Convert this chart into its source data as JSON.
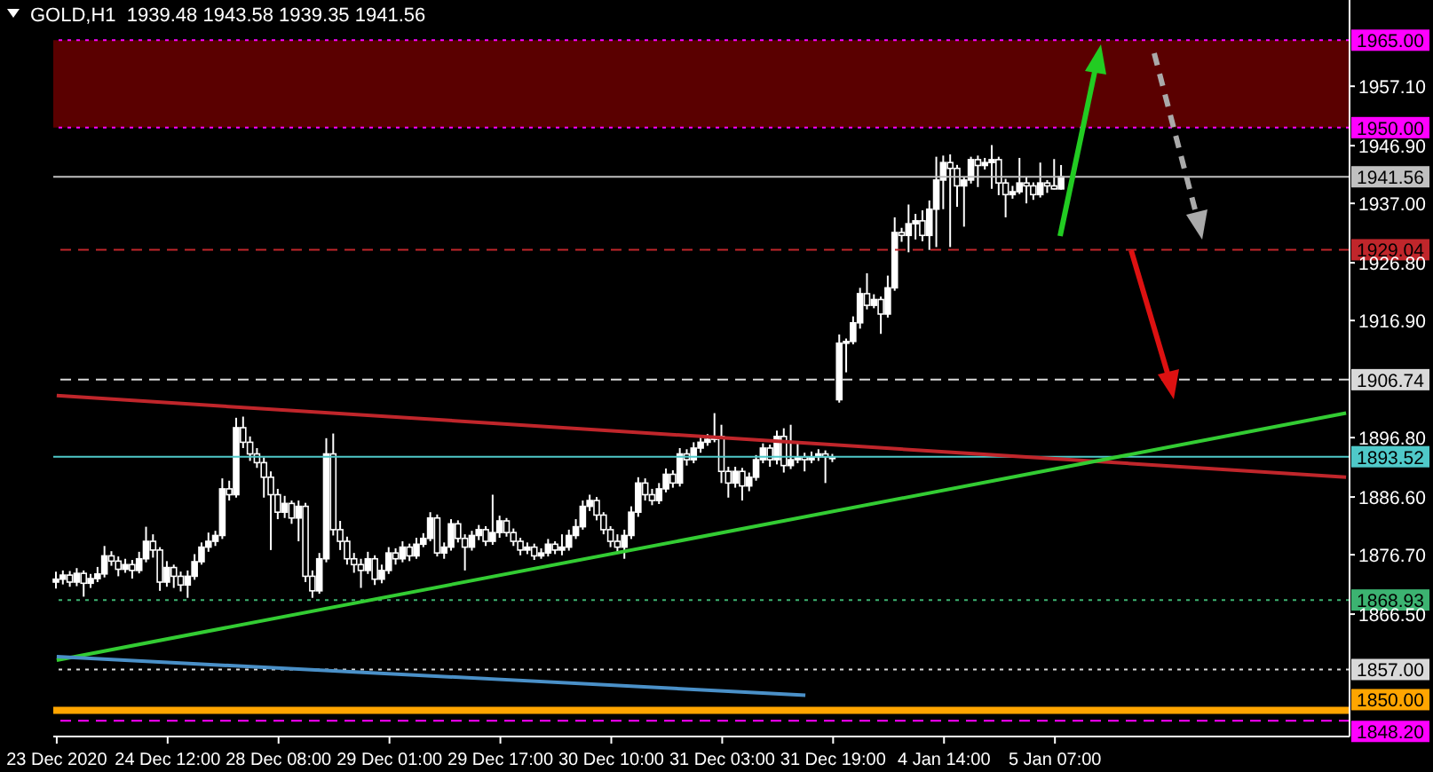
{
  "chart_data": {
    "type": "candlestick",
    "title": "GOLD,H1  1939.48 1943.58 1939.35 1941.56",
    "color": "#ffffff",
    "categories": [
      "23 Dec 2020",
      null,
      null,
      null,
      null,
      null,
      null,
      null,
      null,
      null,
      null,
      null,
      null,
      null,
      null,
      null,
      "24 Dec 12:00",
      null,
      null,
      null,
      null,
      null,
      null,
      null,
      null,
      null,
      null,
      null,
      null,
      null,
      null,
      null,
      "28 Dec 08:00",
      null,
      null,
      null,
      null,
      null,
      null,
      null,
      null,
      null,
      null,
      null,
      null,
      null,
      null,
      null,
      "29 Dec 01:00",
      null,
      null,
      null,
      null,
      null,
      null,
      null,
      null,
      null,
      null,
      null,
      null,
      null,
      null,
      null,
      "29 Dec 17:00",
      null,
      null,
      null,
      null,
      null,
      null,
      null,
      null,
      null,
      null,
      null,
      null,
      null,
      null,
      null,
      "30 Dec 10:00",
      null,
      null,
      null,
      null,
      null,
      null,
      null,
      null,
      null,
      null,
      null,
      null,
      null,
      null,
      null,
      "31 Dec 03:00",
      null,
      null,
      null,
      null,
      null,
      null,
      null,
      null,
      null,
      null,
      null,
      null,
      null,
      null,
      null,
      "31 Dec 19:00",
      null,
      null,
      null,
      null,
      null,
      null,
      null,
      null,
      null,
      null,
      null,
      null,
      null,
      null,
      null,
      "4 Jan 14:00",
      null,
      null,
      null,
      null,
      null,
      null,
      null,
      null,
      null,
      null,
      null,
      null,
      null,
      null,
      null,
      "5 Jan 07:00",
      null,
      null,
      null,
      null,
      null,
      null,
      null,
      null,
      null,
      null,
      null,
      null,
      null,
      null,
      null,
      null,
      null,
      null,
      null,
      null,
      null,
      null,
      null,
      null,
      null,
      null,
      null,
      null,
      null,
      null,
      null,
      null,
      null,
      null,
      null,
      null,
      null,
      null,
      null,
      null,
      null,
      null
    ],
    "ohlc": [
      [
        1872.0,
        1873.8,
        1870.9,
        1872.5
      ],
      [
        1872.5,
        1874.0,
        1871.6,
        1873.2
      ],
      [
        1873.2,
        1873.9,
        1871.2,
        1872.0
      ],
      [
        1872.0,
        1874.4,
        1871.3,
        1873.5
      ],
      [
        1873.5,
        1874.0,
        1869.5,
        1871.8
      ],
      [
        1871.8,
        1873.4,
        1871.0,
        1872.6
      ],
      [
        1872.6,
        1874.6,
        1872.0,
        1873.4
      ],
      [
        1873.4,
        1878.2,
        1872.8,
        1876.5
      ],
      [
        1876.5,
        1877.3,
        1874.8,
        1875.6
      ],
      [
        1875.6,
        1876.4,
        1873.0,
        1874.2
      ],
      [
        1874.2,
        1876.0,
        1873.6,
        1875.0
      ],
      [
        1875.0,
        1875.8,
        1872.6,
        1874.0
      ],
      [
        1874.0,
        1877.2,
        1873.5,
        1876.0
      ],
      [
        1876.0,
        1881.5,
        1875.4,
        1879.0
      ],
      [
        1879.0,
        1880.2,
        1876.2,
        1877.5
      ],
      [
        1877.5,
        1878.0,
        1870.5,
        1872.0
      ],
      [
        1872.0,
        1875.6,
        1871.2,
        1874.5
      ],
      [
        1874.5,
        1875.0,
        1871.0,
        1873.0
      ],
      [
        1873.0,
        1873.8,
        1870.4,
        1871.5
      ],
      [
        1871.5,
        1874.0,
        1869.3,
        1873.0
      ],
      [
        1873.0,
        1876.8,
        1872.4,
        1875.5
      ],
      [
        1875.5,
        1878.8,
        1875.0,
        1878.0
      ],
      [
        1878.0,
        1880.5,
        1877.2,
        1879.0
      ],
      [
        1879.0,
        1880.8,
        1878.2,
        1880.0
      ],
      [
        1880.0,
        1889.8,
        1879.4,
        1888.0
      ],
      [
        1888.0,
        1889.4,
        1886.0,
        1887.0
      ],
      [
        1887.0,
        1900.2,
        1886.5,
        1898.5
      ],
      [
        1898.5,
        1900.4,
        1895.0,
        1896.0
      ],
      [
        1896.0,
        1897.0,
        1892.8,
        1894.0
      ],
      [
        1894.0,
        1895.0,
        1891.6,
        1892.5
      ],
      [
        1892.5,
        1893.4,
        1886.5,
        1890.0
      ],
      [
        1890.0,
        1891.0,
        1877.5,
        1887.0
      ],
      [
        1887.0,
        1888.0,
        1882.8,
        1884.0
      ],
      [
        1884.0,
        1886.8,
        1883.0,
        1885.5
      ],
      [
        1885.5,
        1886.0,
        1882.0,
        1883.0
      ],
      [
        1883.0,
        1886.0,
        1879.0,
        1885.0
      ],
      [
        1885.0,
        1885.6,
        1872.0,
        1873.0
      ],
      [
        1873.0,
        1874.0,
        1869.3,
        1870.5
      ],
      [
        1870.5,
        1877.0,
        1870.0,
        1876.0
      ],
      [
        1876.0,
        1896.7,
        1875.4,
        1894.0
      ],
      [
        1894.0,
        1897.5,
        1880.0,
        1881.0
      ],
      [
        1881.0,
        1882.5,
        1877.5,
        1879.0
      ],
      [
        1879.0,
        1879.8,
        1875.0,
        1876.0
      ],
      [
        1876.0,
        1877.0,
        1873.6,
        1875.0
      ],
      [
        1875.0,
        1876.0,
        1871.0,
        1874.0
      ],
      [
        1874.0,
        1877.2,
        1873.4,
        1876.0
      ],
      [
        1876.0,
        1876.6,
        1871.5,
        1872.5
      ],
      [
        1872.5,
        1875.0,
        1871.8,
        1874.0
      ],
      [
        1874.0,
        1878.0,
        1873.4,
        1877.0
      ],
      [
        1877.0,
        1877.8,
        1875.0,
        1876.0
      ],
      [
        1876.0,
        1879.0,
        1875.4,
        1878.0
      ],
      [
        1878.0,
        1878.6,
        1875.6,
        1876.5
      ],
      [
        1876.5,
        1879.6,
        1876.0,
        1878.5
      ],
      [
        1878.5,
        1880.4,
        1878.0,
        1879.5
      ],
      [
        1879.5,
        1884.0,
        1879.0,
        1883.0
      ],
      [
        1883.0,
        1883.6,
        1876.4,
        1877.0
      ],
      [
        1877.0,
        1878.8,
        1876.0,
        1878.0
      ],
      [
        1878.0,
        1882.8,
        1877.4,
        1882.0
      ],
      [
        1882.0,
        1882.6,
        1878.8,
        1879.5
      ],
      [
        1879.5,
        1880.2,
        1874.0,
        1878.0
      ],
      [
        1878.0,
        1880.8,
        1877.4,
        1880.0
      ],
      [
        1880.0,
        1881.8,
        1879.2,
        1881.0
      ],
      [
        1881.0,
        1881.6,
        1878.2,
        1879.0
      ],
      [
        1879.0,
        1887.0,
        1878.4,
        1880.5
      ],
      [
        1880.5,
        1883.4,
        1879.6,
        1882.5
      ],
      [
        1882.5,
        1883.0,
        1879.8,
        1880.5
      ],
      [
        1880.5,
        1881.2,
        1878.2,
        1879.0
      ],
      [
        1879.0,
        1879.6,
        1876.6,
        1877.5
      ],
      [
        1877.5,
        1878.8,
        1876.8,
        1878.0
      ],
      [
        1878.0,
        1878.6,
        1875.8,
        1876.5
      ],
      [
        1876.5,
        1877.8,
        1876.0,
        1877.0
      ],
      [
        1877.0,
        1879.4,
        1876.4,
        1878.5
      ],
      [
        1878.5,
        1879.0,
        1876.8,
        1877.5
      ],
      [
        1877.5,
        1880.2,
        1876.6,
        1878.0
      ],
      [
        1878.0,
        1881.0,
        1877.4,
        1880.0
      ],
      [
        1880.0,
        1882.8,
        1879.4,
        1881.5
      ],
      [
        1881.5,
        1886.0,
        1881.0,
        1885.0
      ],
      [
        1885.0,
        1887.0,
        1884.2,
        1886.0
      ],
      [
        1886.0,
        1886.6,
        1882.6,
        1883.5
      ],
      [
        1883.5,
        1884.0,
        1880.2,
        1881.0
      ],
      [
        1881.0,
        1881.6,
        1878.0,
        1879.0
      ],
      [
        1879.0,
        1880.2,
        1877.0,
        1878.0
      ],
      [
        1878.0,
        1881.0,
        1876.0,
        1880.0
      ],
      [
        1880.0,
        1885.0,
        1879.4,
        1884.0
      ],
      [
        1884.0,
        1890.0,
        1883.2,
        1889.0
      ],
      [
        1889.0,
        1889.8,
        1886.0,
        1887.0
      ],
      [
        1887.0,
        1888.0,
        1885.2,
        1886.0
      ],
      [
        1886.0,
        1889.0,
        1885.4,
        1888.0
      ],
      [
        1888.0,
        1891.5,
        1887.4,
        1890.5
      ],
      [
        1890.5,
        1891.2,
        1888.2,
        1889.0
      ],
      [
        1889.0,
        1895.0,
        1888.4,
        1894.0
      ],
      [
        1894.0,
        1894.8,
        1892.0,
        1893.0
      ],
      [
        1893.0,
        1896.0,
        1892.4,
        1895.0
      ],
      [
        1895.0,
        1896.8,
        1894.2,
        1896.0
      ],
      [
        1896.0,
        1897.4,
        1895.4,
        1896.5
      ],
      [
        1896.5,
        1901.0,
        1896.0,
        1897.0
      ],
      [
        1897.0,
        1899.0,
        1889.0,
        1891.0
      ],
      [
        1891.0,
        1891.8,
        1886.5,
        1889.0
      ],
      [
        1889.0,
        1891.8,
        1888.2,
        1891.0
      ],
      [
        1891.0,
        1891.6,
        1886.0,
        1888.5
      ],
      [
        1888.5,
        1890.8,
        1887.6,
        1890.0
      ],
      [
        1890.0,
        1893.8,
        1889.4,
        1893.0
      ],
      [
        1893.0,
        1895.8,
        1892.4,
        1895.0
      ],
      [
        1895.0,
        1895.6,
        1891.8,
        1893.0
      ],
      [
        1893.0,
        1898.0,
        1892.2,
        1897.0
      ],
      [
        1897.0,
        1898.4,
        1890.8,
        1892.0
      ],
      [
        1892.0,
        1899.0,
        1891.4,
        1893.0
      ],
      [
        1893.0,
        1896.0,
        1892.4,
        1893.5
      ],
      [
        1893.5,
        1894.2,
        1891.0,
        1893.0
      ],
      [
        1893.0,
        1894.4,
        1892.4,
        1893.5
      ],
      [
        1893.5,
        1894.8,
        1892.8,
        1894.0
      ],
      [
        1894.0,
        1894.6,
        1889.0,
        1893.5
      ],
      [
        1893.5,
        1894.0,
        1892.6,
        1893.2
      ],
      [
        1903.3,
        1914.5,
        1902.8,
        1913.0
      ],
      [
        1913.0,
        1913.8,
        1908.0,
        1913.3
      ],
      [
        1913.3,
        1917.6,
        1912.8,
        1916.5
      ],
      [
        1916.5,
        1922.5,
        1915.5,
        1921.5
      ],
      [
        1921.5,
        1925.0,
        1918.8,
        1919.5
      ],
      [
        1919.5,
        1921.4,
        1919.0,
        1920.5
      ],
      [
        1920.5,
        1921.0,
        1914.6,
        1918.0
      ],
      [
        1918.0,
        1924.6,
        1917.4,
        1922.5
      ],
      [
        1922.5,
        1934.6,
        1922.0,
        1932.0
      ],
      [
        1932.0,
        1932.8,
        1930.4,
        1931.5
      ],
      [
        1931.5,
        1936.8,
        1928.6,
        1933.5
      ],
      [
        1933.5,
        1935.2,
        1930.8,
        1934.0
      ],
      [
        1934.0,
        1935.8,
        1930.5,
        1931.5
      ],
      [
        1931.5,
        1937.5,
        1929.0,
        1936.0
      ],
      [
        1936.0,
        1945.0,
        1929.5,
        1941.0
      ],
      [
        1941.0,
        1945.2,
        1936.0,
        1944.0
      ],
      [
        1944.0,
        1945.4,
        1929.5,
        1943.0
      ],
      [
        1943.0,
        1943.6,
        1936.4,
        1940.0
      ],
      [
        1940.0,
        1941.6,
        1933.0,
        1941.0
      ],
      [
        1941.0,
        1945.0,
        1940.4,
        1944.5
      ],
      [
        1944.5,
        1945.2,
        1939.8,
        1943.5
      ],
      [
        1943.5,
        1944.8,
        1942.8,
        1944.0
      ],
      [
        1944.0,
        1947.0,
        1939.5,
        1944.5
      ],
      [
        1944.5,
        1945.0,
        1938.4,
        1940.5
      ],
      [
        1940.5,
        1941.2,
        1934.6,
        1938.5
      ],
      [
        1938.5,
        1940.0,
        1937.8,
        1939.0
      ],
      [
        1939.0,
        1944.8,
        1938.6,
        1940.5
      ],
      [
        1940.5,
        1941.6,
        1937.0,
        1940.0
      ],
      [
        1940.0,
        1940.6,
        1937.6,
        1938.5
      ],
      [
        1938.5,
        1944.0,
        1938.0,
        1940.5
      ],
      [
        1940.5,
        1941.0,
        1938.8,
        1940.0
      ],
      [
        1940.0,
        1944.6,
        1939.4,
        1939.48
      ],
      [
        1939.48,
        1943.58,
        1939.35,
        1941.56
      ],
      null,
      null,
      null,
      null,
      null,
      null,
      null,
      null,
      null,
      null,
      null,
      null,
      null,
      null,
      null,
      null,
      null,
      null,
      null,
      null,
      null,
      null,
      null,
      null,
      null,
      null,
      null,
      null,
      null,
      null,
      null,
      null,
      null,
      null,
      null,
      null,
      null,
      null,
      null,
      null,
      null
    ],
    "series": [
      {
        "type": "line",
        "color": "#c0262b",
        "values": [
          1904.0,
          null,
          null,
          null,
          null,
          null,
          null,
          null,
          null,
          null,
          null,
          null,
          null,
          null,
          null,
          null,
          null,
          null,
          null,
          null,
          null,
          null,
          null,
          null,
          null,
          null,
          null,
          null,
          null,
          null,
          null,
          null,
          null,
          null,
          null,
          null,
          null,
          null,
          null,
          null,
          null,
          null,
          null,
          null,
          null,
          null,
          null,
          null,
          null,
          null,
          null,
          null,
          null,
          null,
          null,
          null,
          null,
          null,
          null,
          null,
          null,
          null,
          null,
          null,
          null,
          null,
          null,
          null,
          null,
          null,
          null,
          null,
          null,
          null,
          null,
          null,
          null,
          null,
          null,
          null,
          null,
          null,
          null,
          null,
          null,
          null,
          null,
          null,
          null,
          null,
          null,
          null,
          null,
          null,
          null,
          null,
          null,
          null,
          null,
          null,
          null,
          null,
          null,
          null,
          null,
          null,
          null,
          null,
          null,
          null,
          null,
          null,
          null,
          null,
          null,
          null,
          null,
          null,
          null,
          null,
          null,
          null,
          null,
          null,
          null,
          null,
          null,
          null,
          null,
          null,
          null,
          null,
          null,
          null,
          null,
          null,
          null,
          null,
          null,
          null,
          null,
          null,
          null,
          null,
          null,
          null,
          null,
          null,
          null,
          null,
          null,
          null,
          null,
          null,
          null,
          null,
          null,
          null,
          null,
          null,
          null,
          null,
          null,
          null,
          null,
          null,
          null,
          null,
          null,
          null,
          null,
          null,
          null,
          null,
          null,
          null,
          null,
          null,
          null,
          null,
          null,
          null,
          null,
          null,
          null,
          null,
          1890.0
        ]
      },
      {
        "type": "line",
        "color": "#33cc33",
        "values": [
          1858.6,
          null,
          null,
          null,
          null,
          null,
          null,
          null,
          null,
          null,
          null,
          null,
          null,
          null,
          null,
          null,
          null,
          null,
          null,
          null,
          null,
          null,
          null,
          null,
          null,
          null,
          null,
          null,
          null,
          null,
          null,
          null,
          null,
          null,
          null,
          null,
          null,
          null,
          null,
          null,
          null,
          null,
          null,
          null,
          null,
          null,
          null,
          null,
          null,
          null,
          null,
          null,
          null,
          null,
          null,
          null,
          null,
          null,
          null,
          null,
          null,
          null,
          null,
          null,
          null,
          null,
          null,
          null,
          null,
          null,
          null,
          null,
          null,
          null,
          null,
          null,
          null,
          null,
          null,
          null,
          null,
          null,
          null,
          null,
          null,
          null,
          null,
          null,
          null,
          null,
          null,
          null,
          null,
          null,
          null,
          null,
          null,
          null,
          null,
          null,
          null,
          null,
          null,
          null,
          null,
          null,
          null,
          null,
          null,
          null,
          null,
          null,
          null,
          null,
          null,
          null,
          null,
          null,
          null,
          null,
          null,
          null,
          null,
          null,
          null,
          null,
          null,
          null,
          null,
          null,
          null,
          null,
          null,
          null,
          null,
          null,
          null,
          null,
          null,
          null,
          null,
          null,
          null,
          null,
          null,
          null,
          null,
          null,
          null,
          null,
          null,
          null,
          null,
          null,
          null,
          null,
          null,
          null,
          null,
          null,
          null,
          null,
          null,
          null,
          null,
          null,
          null,
          null,
          null,
          null,
          null,
          null,
          null,
          null,
          null,
          null,
          null,
          null,
          null,
          null,
          null,
          null,
          null,
          null,
          null,
          null,
          1901.0
        ]
      },
      {
        "type": "line",
        "color": "#4a90c8",
        "values": [
          1859.2,
          null,
          null,
          null,
          null,
          null,
          null,
          null,
          null,
          null,
          null,
          null,
          null,
          null,
          null,
          null,
          null,
          null,
          null,
          null,
          null,
          null,
          null,
          null,
          null,
          null,
          null,
          null,
          null,
          null,
          null,
          null,
          null,
          null,
          null,
          null,
          null,
          null,
          null,
          null,
          null,
          null,
          null,
          null,
          null,
          null,
          null,
          null,
          null,
          null,
          null,
          null,
          null,
          null,
          null,
          null,
          null,
          null,
          null,
          null,
          null,
          null,
          null,
          null,
          null,
          null,
          null,
          null,
          null,
          null,
          null,
          null,
          null,
          null,
          null,
          null,
          null,
          null,
          null,
          null,
          null,
          null,
          null,
          null,
          null,
          null,
          null,
          null,
          null,
          null,
          null,
          null,
          null,
          null,
          null,
          null,
          null,
          null,
          null,
          null,
          null,
          null,
          null,
          null,
          null,
          null,
          null,
          null,
          1852.6,
          null,
          null,
          null,
          null,
          null,
          null,
          null,
          null,
          null,
          null,
          null,
          null,
          null,
          null,
          null,
          null,
          null,
          null,
          null,
          null,
          null,
          null,
          null,
          null,
          null,
          null,
          null,
          null,
          null,
          null,
          null,
          null,
          null,
          null,
          null,
          null,
          null,
          null,
          null,
          null,
          null,
          null,
          null,
          null,
          null,
          null,
          null,
          null,
          null,
          null,
          null,
          null,
          null,
          null,
          null,
          null,
          null,
          null,
          null,
          null,
          null,
          null,
          null,
          null,
          null,
          null,
          null,
          null,
          null,
          null,
          null,
          null,
          null,
          null,
          null,
          null,
          null,
          null
        ]
      }
    ],
    "ylim": [
      1845.5,
      1971.9
    ],
    "yticks": [
      {
        "value": 1957.1,
        "label": "1957.10"
      },
      {
        "value": 1946.9,
        "label": "1946.90"
      },
      {
        "value": 1937,
        "label": "1937.00"
      },
      {
        "value": 1926.8,
        "label": "1926.80"
      },
      {
        "value": 1916.9,
        "label": "1916.90"
      },
      {
        "value": 1896.8,
        "label": "1896.80"
      },
      {
        "value": 1886.6,
        "label": "1886.60"
      },
      {
        "value": 1876.7,
        "label": "1876.70"
      },
      {
        "value": 1866.5,
        "label": "1866.50"
      }
    ],
    "bands": [
      {
        "axis": "y",
        "from": 1950,
        "to": 1965,
        "color": "#5a0000"
      }
    ],
    "ref_lines": [
      {
        "axis": "y",
        "value": 1965,
        "label": "1965.00",
        "color": "#ff00ff",
        "line_style": "dotted"
      },
      {
        "axis": "y",
        "value": 1950,
        "label": "1950.00",
        "color": "#ff00ff",
        "line_style": "dotted"
      },
      {
        "axis": "y",
        "value": 1941.56,
        "label": "1941.56",
        "color": "#c0c0c0",
        "line_style": "solid"
      },
      {
        "axis": "y",
        "value": 1929.04,
        "label": "1929.04",
        "color": "#c0262b",
        "line_style": "dashed"
      },
      {
        "axis": "y",
        "value": 1906.74,
        "label": "1906.74",
        "color": "#d9d9d9",
        "line_style": "dashed"
      },
      {
        "axis": "y",
        "value": 1893.52,
        "label": "1893.52",
        "color": "#4fc9c9",
        "line_style": "solid"
      },
      {
        "axis": "y",
        "value": 1868.93,
        "label": "1868.93",
        "color": "#3cb371",
        "line_style": "dotted"
      },
      {
        "axis": "y",
        "value": 1857,
        "label": "1857.00",
        "color": "#d9d9d9",
        "line_style": "dotted"
      },
      {
        "axis": "y",
        "value": 1848.2,
        "label": "1848.20",
        "color": "#ff00ff",
        "line_style": "dashed"
      },
      {
        "axis": "y",
        "value": 1850,
        "label": "1850.00",
        "color": "#ffa500",
        "line_style": "solid"
      }
    ],
    "grid": false,
    "legend": false
  }
}
